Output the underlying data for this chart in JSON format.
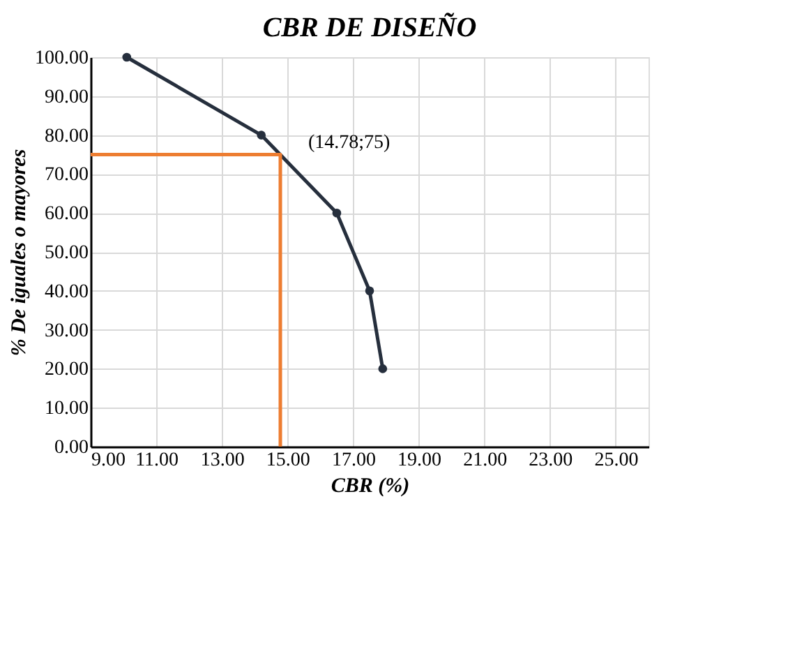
{
  "chart_data": {
    "type": "line",
    "title": "CBR DE DISEÑO",
    "xlabel": "CBR (%)",
    "ylabel": "% De iguales o mayores",
    "series": [
      {
        "color": "#262f3d",
        "marker": "circle",
        "x": [
          10.1,
          14.2,
          16.5,
          17.5,
          17.9
        ],
        "values": [
          100,
          80,
          60,
          40,
          20
        ]
      },
      {
        "color": "#ed7d31",
        "marker": "none",
        "x": [
          9,
          14.78,
          14.78
        ],
        "values": [
          75,
          75,
          0
        ]
      }
    ],
    "annotations": [
      {
        "text": "(14.78;75)",
        "x": 14.78,
        "y": 75
      }
    ],
    "xlim": [
      9,
      26
    ],
    "ylim": [
      0,
      100
    ],
    "xticks": [
      {
        "value": 9,
        "label": "9.00"
      },
      {
        "value": 11,
        "label": "11.00"
      },
      {
        "value": 13,
        "label": "13.00"
      },
      {
        "value": 15,
        "label": "15.00"
      },
      {
        "value": 17,
        "label": "17.00"
      },
      {
        "value": 19,
        "label": "19.00"
      },
      {
        "value": 21,
        "label": "21.00"
      },
      {
        "value": 23,
        "label": "23.00"
      },
      {
        "value": 25,
        "label": "25.00"
      }
    ],
    "yticks": [
      {
        "value": 0,
        "label": "0.00"
      },
      {
        "value": 10,
        "label": "10.00"
      },
      {
        "value": 20,
        "label": "20.00"
      },
      {
        "value": 30,
        "label": "30.00"
      },
      {
        "value": 40,
        "label": "40.00"
      },
      {
        "value": 50,
        "label": "50.00"
      },
      {
        "value": 60,
        "label": "60.00"
      },
      {
        "value": 70,
        "label": "70.00"
      },
      {
        "value": 80,
        "label": "80.00"
      },
      {
        "value": 90,
        "label": "90.00"
      },
      {
        "value": 100,
        "label": "100.00"
      }
    ],
    "grid": true
  }
}
